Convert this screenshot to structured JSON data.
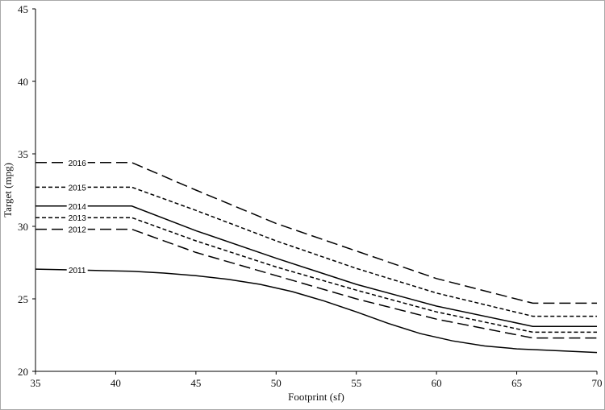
{
  "chart_data": {
    "type": "line",
    "title": "",
    "xlabel": "Footprint (sf)",
    "ylabel": "Target (mpg)",
    "xlim": [
      35,
      70
    ],
    "ylim": [
      20,
      45
    ],
    "x_ticks": [
      35,
      40,
      45,
      50,
      55,
      60,
      65,
      70
    ],
    "y_ticks": [
      20,
      25,
      30,
      35,
      40,
      45
    ],
    "grid": false,
    "legend": "inline labels",
    "series": [
      {
        "name": "2016",
        "style": "long-dash",
        "points": [
          [
            35,
            34.4
          ],
          [
            41,
            34.4
          ],
          [
            45,
            32.5
          ],
          [
            50,
            30.2
          ],
          [
            55,
            28.3
          ],
          [
            60,
            26.4
          ],
          [
            66,
            24.7
          ],
          [
            70,
            24.7
          ]
        ],
        "label_x": 37.6
      },
      {
        "name": "2015",
        "style": "short-dash",
        "points": [
          [
            35,
            32.7
          ],
          [
            41,
            32.7
          ],
          [
            45,
            31.1
          ],
          [
            50,
            29.0
          ],
          [
            55,
            27.1
          ],
          [
            60,
            25.4
          ],
          [
            66,
            23.8
          ],
          [
            70,
            23.8
          ]
        ],
        "label_x": 37.6
      },
      {
        "name": "2014",
        "style": "solid",
        "points": [
          [
            35,
            31.4
          ],
          [
            41,
            31.4
          ],
          [
            45,
            29.7
          ],
          [
            50,
            27.8
          ],
          [
            55,
            26.0
          ],
          [
            60,
            24.5
          ],
          [
            66,
            23.1
          ],
          [
            70,
            23.1
          ]
        ],
        "label_x": 37.6
      },
      {
        "name": "2013",
        "style": "short-dash",
        "points": [
          [
            35,
            30.6
          ],
          [
            41,
            30.6
          ],
          [
            45,
            29.0
          ],
          [
            50,
            27.2
          ],
          [
            55,
            25.6
          ],
          [
            60,
            24.1
          ],
          [
            66,
            22.7
          ],
          [
            70,
            22.7
          ]
        ],
        "label_x": 37.6
      },
      {
        "name": "2012",
        "style": "long-dash",
        "points": [
          [
            35,
            29.8
          ],
          [
            41,
            29.8
          ],
          [
            45,
            28.2
          ],
          [
            50,
            26.6
          ],
          [
            55,
            25.0
          ],
          [
            60,
            23.6
          ],
          [
            66,
            22.3
          ],
          [
            70,
            22.3
          ]
        ],
        "label_x": 37.6
      },
      {
        "name": "2011",
        "style": "solid",
        "points": [
          [
            35,
            27.05
          ],
          [
            38,
            26.98
          ],
          [
            41,
            26.9
          ],
          [
            43,
            26.78
          ],
          [
            45,
            26.6
          ],
          [
            47,
            26.35
          ],
          [
            49,
            26.0
          ],
          [
            51,
            25.5
          ],
          [
            53,
            24.85
          ],
          [
            55,
            24.1
          ],
          [
            57,
            23.3
          ],
          [
            59,
            22.6
          ],
          [
            61,
            22.1
          ],
          [
            63,
            21.75
          ],
          [
            65,
            21.55
          ],
          [
            67,
            21.45
          ],
          [
            70,
            21.3
          ]
        ],
        "label_x": 37.6
      }
    ]
  }
}
